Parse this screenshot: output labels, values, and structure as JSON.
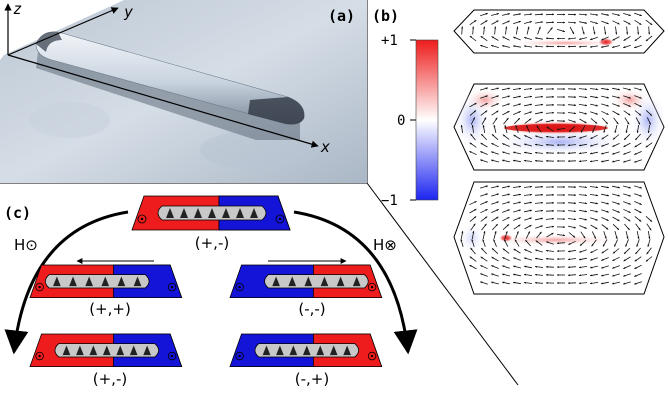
{
  "panel_a": {
    "label": "(a)",
    "axis_z": "z",
    "axis_y": "y",
    "axis_x": "x"
  },
  "panel_b": {
    "label": "(b)",
    "colorbar_max": "+1",
    "colorbar_mid": "0",
    "colorbar_min": "−1",
    "colors": {
      "positive": "#ee1c1c",
      "zero": "#ffffff",
      "negative": "#1c24f0"
    }
  },
  "panel_c": {
    "label": "(c)",
    "field_out": "H⊙",
    "field_in": "H⊗",
    "states": {
      "top": "(+,-)",
      "mid_left": "(+,+)",
      "mid_right": "(-,-)",
      "bottom_left": "(+,-)",
      "bottom_right": "(-,+)"
    },
    "colors": {
      "red": "#ee1c1c",
      "blue": "#1414d8",
      "gray": "#c8c8c8"
    }
  }
}
